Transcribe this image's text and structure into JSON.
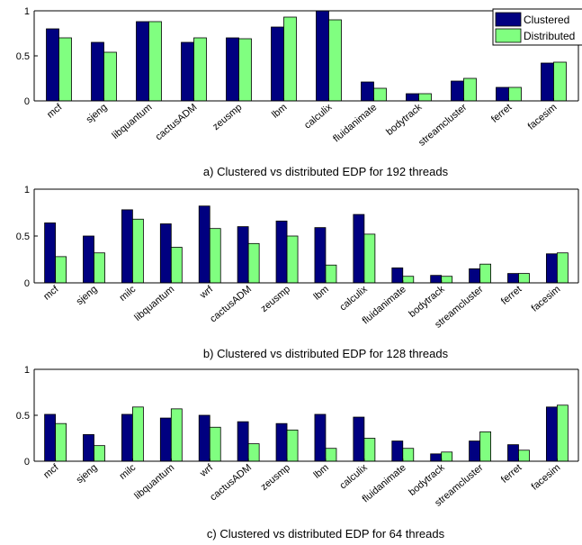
{
  "chart_data": [
    {
      "type": "bar",
      "caption": "a) Clustered vs distributed EDP for 192 threads",
      "categories": [
        "mcf",
        "sjeng",
        "libquantum",
        "cactusADM",
        "zeusmp",
        "lbm",
        "calculix",
        "fluidanimate",
        "bodytrack",
        "streamcluster",
        "ferret",
        "facesim"
      ],
      "series": [
        {
          "name": "Clustered",
          "color": "#000080",
          "values": [
            0.8,
            0.65,
            0.88,
            0.65,
            0.7,
            0.82,
            1.0,
            0.21,
            0.08,
            0.22,
            0.15,
            0.42
          ]
        },
        {
          "name": "Distributed",
          "color": "#80ff80",
          "values": [
            0.7,
            0.54,
            0.88,
            0.7,
            0.69,
            0.93,
            0.9,
            0.14,
            0.08,
            0.25,
            0.15,
            0.43
          ]
        }
      ],
      "ylim": [
        0,
        1
      ],
      "yticks": [
        "0",
        "0.5",
        "1"
      ],
      "legend": "top-right",
      "grid": false
    },
    {
      "type": "bar",
      "caption": "b) Clustered vs distributed EDP for 128 threads",
      "categories": [
        "mcf",
        "sjeng",
        "milc",
        "libquantum",
        "wrf",
        "cactusADM",
        "zeusmp",
        "lbm",
        "calculix",
        "fluidanimate",
        "bodytrack",
        "streamcluster",
        "ferret",
        "facesim"
      ],
      "series": [
        {
          "name": "Clustered",
          "color": "#000080",
          "values": [
            0.64,
            0.5,
            0.78,
            0.63,
            0.82,
            0.6,
            0.66,
            0.59,
            0.73,
            0.16,
            0.08,
            0.15,
            0.1,
            0.31
          ]
        },
        {
          "name": "Distributed",
          "color": "#80ff80",
          "values": [
            0.28,
            0.32,
            0.68,
            0.38,
            0.58,
            0.42,
            0.5,
            0.19,
            0.52,
            0.07,
            0.07,
            0.2,
            0.1,
            0.32
          ]
        }
      ],
      "ylim": [
        0,
        1
      ],
      "yticks": [
        "0",
        "0.5",
        "1"
      ],
      "grid": false
    },
    {
      "type": "bar",
      "caption": "c) Clustered vs distributed EDP for 64 threads",
      "categories": [
        "mcf",
        "sjeng",
        "milc",
        "libquantum",
        "wrf",
        "cactusADM",
        "zeusmp",
        "lbm",
        "calculix",
        "fluidanimate",
        "bodytrack",
        "streamcluster",
        "ferret",
        "facesim"
      ],
      "series": [
        {
          "name": "Clustered",
          "color": "#000080",
          "values": [
            0.51,
            0.29,
            0.51,
            0.47,
            0.5,
            0.43,
            0.41,
            0.51,
            0.48,
            0.22,
            0.08,
            0.22,
            0.18,
            0.59
          ]
        },
        {
          "name": "Distributed",
          "color": "#80ff80",
          "values": [
            0.41,
            0.17,
            0.59,
            0.57,
            0.37,
            0.19,
            0.34,
            0.14,
            0.25,
            0.14,
            0.1,
            0.32,
            0.12,
            0.61
          ]
        }
      ],
      "ylim": [
        0,
        1
      ],
      "yticks": [
        "0",
        "0.5",
        "1"
      ],
      "grid": false
    }
  ],
  "legend": {
    "clustered_label": "Clustered",
    "distributed_label": "Distributed"
  }
}
